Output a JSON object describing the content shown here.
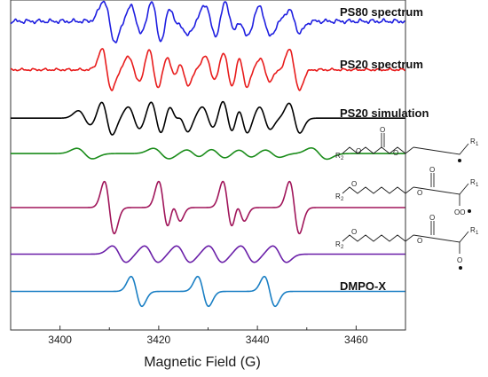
{
  "chart_data": {
    "type": "line",
    "xlabel": "Magnetic Field (G)",
    "ylabel": "",
    "xlim": [
      3390,
      3470
    ],
    "xticks": [
      3400,
      3420,
      3440,
      3460
    ],
    "grid": false,
    "legend": "none",
    "series": [
      {
        "name": "PS80 spectrum",
        "color": "#1f1fe0",
        "offset": 8.0,
        "components": [
          {
            "center": 3410.0,
            "amp": 0.55,
            "width": 1.2
          },
          {
            "center": 3415.5,
            "amp": 0.4,
            "width": 1.2
          },
          {
            "center": 3419.5,
            "amp": 0.6,
            "width": 1.1
          },
          {
            "center": 3423.0,
            "amp": 0.45,
            "width": 1.0
          },
          {
            "center": 3425.0,
            "amp": 0.35,
            "width": 1.0
          },
          {
            "center": 3430.5,
            "amp": 0.45,
            "width": 1.1
          },
          {
            "center": 3434.5,
            "amp": 0.55,
            "width": 1.1
          },
          {
            "center": 3437.0,
            "amp": 0.4,
            "width": 1.0
          },
          {
            "center": 3441.5,
            "amp": 0.4,
            "width": 1.1
          },
          {
            "center": 3447.5,
            "amp": 0.3,
            "width": 1.1
          }
        ],
        "noise": 0.07
      },
      {
        "name": "PS20 spectrum",
        "color": "#e81c1c",
        "offset": 6.7,
        "components": [
          {
            "center": 3409.5,
            "amp": 0.55,
            "width": 1.0
          },
          {
            "center": 3415.0,
            "amp": 0.35,
            "width": 1.1
          },
          {
            "center": 3419.0,
            "amp": 0.55,
            "width": 1.0
          },
          {
            "center": 3422.5,
            "amp": 0.4,
            "width": 1.0
          },
          {
            "center": 3425.0,
            "amp": 0.4,
            "width": 1.0
          },
          {
            "center": 3430.5,
            "amp": 0.35,
            "width": 1.1
          },
          {
            "center": 3434.0,
            "amp": 0.55,
            "width": 1.0
          },
          {
            "center": 3437.0,
            "amp": 0.45,
            "width": 0.9
          },
          {
            "center": 3441.5,
            "amp": 0.3,
            "width": 1.0
          },
          {
            "center": 3447.5,
            "amp": 0.55,
            "width": 1.0
          }
        ],
        "noise": 0.04
      },
      {
        "name": "PS20 simulation",
        "color": "#000000",
        "offset": 5.4,
        "components": [
          {
            "center": 3405.0,
            "amp": 0.2,
            "width": 1.3
          },
          {
            "center": 3409.5,
            "amp": 0.45,
            "width": 1.1
          },
          {
            "center": 3415.0,
            "amp": 0.3,
            "width": 1.2
          },
          {
            "center": 3419.5,
            "amp": 0.45,
            "width": 1.1
          },
          {
            "center": 3423.0,
            "amp": 0.35,
            "width": 1.0
          },
          {
            "center": 3425.0,
            "amp": 0.35,
            "width": 1.0
          },
          {
            "center": 3430.0,
            "amp": 0.3,
            "width": 1.2
          },
          {
            "center": 3434.0,
            "amp": 0.5,
            "width": 1.1
          },
          {
            "center": 3437.0,
            "amp": 0.4,
            "width": 1.0
          },
          {
            "center": 3441.5,
            "amp": 0.3,
            "width": 1.1
          },
          {
            "center": 3447.5,
            "amp": 0.4,
            "width": 1.1
          }
        ],
        "noise": 0
      },
      {
        "name": "",
        "color": "#1a8c1a",
        "offset": 4.45,
        "components": [
          {
            "center": 3405.0,
            "amp": 0.14,
            "width": 1.6
          },
          {
            "center": 3420.5,
            "amp": 0.14,
            "width": 1.6
          },
          {
            "center": 3427.0,
            "amp": 0.1,
            "width": 1.4
          },
          {
            "center": 3432.0,
            "amp": 0.12,
            "width": 1.5
          },
          {
            "center": 3437.5,
            "amp": 0.1,
            "width": 1.4
          },
          {
            "center": 3443.0,
            "amp": 0.1,
            "width": 1.5
          },
          {
            "center": 3452.5,
            "amp": 0.15,
            "width": 1.6
          }
        ],
        "noise": 0
      },
      {
        "name": "",
        "color": "#a0155a",
        "offset": 3.0,
        "components": [
          {
            "center": 3410.0,
            "amp": 0.7,
            "width": 1.0
          },
          {
            "center": 3421.0,
            "amp": 0.7,
            "width": 1.0
          },
          {
            "center": 3423.5,
            "amp": 0.35,
            "width": 0.9
          },
          {
            "center": 3434.0,
            "amp": 0.7,
            "width": 1.0
          },
          {
            "center": 3436.5,
            "amp": 0.35,
            "width": 0.9
          },
          {
            "center": 3447.5,
            "amp": 0.7,
            "width": 1.0
          }
        ],
        "noise": 0
      },
      {
        "name": "",
        "color": "#6a1fa8",
        "offset": 1.75,
        "components": [
          {
            "center": 3412.0,
            "amp": 0.22,
            "width": 1.4
          },
          {
            "center": 3418.5,
            "amp": 0.22,
            "width": 1.4
          },
          {
            "center": 3425.0,
            "amp": 0.22,
            "width": 1.4
          },
          {
            "center": 3431.5,
            "amp": 0.22,
            "width": 1.4
          },
          {
            "center": 3438.0,
            "amp": 0.22,
            "width": 1.4
          },
          {
            "center": 3444.5,
            "amp": 0.22,
            "width": 1.4
          }
        ],
        "noise": 0
      },
      {
        "name": "DMPO-X",
        "color": "#1a7fc4",
        "offset": 0.75,
        "components": [
          {
            "center": 3415.5,
            "amp": 0.4,
            "width": 1.1
          },
          {
            "center": 3429.0,
            "amp": 0.4,
            "width": 1.1
          },
          {
            "center": 3442.5,
            "amp": 0.4,
            "width": 1.1
          }
        ],
        "noise": 0
      }
    ]
  },
  "structures": {
    "label_r1": "R",
    "label_r1_sub": "1",
    "label_r2": "R",
    "label_r2_sub": "2",
    "label_o": "O",
    "label_oo": "OO"
  }
}
